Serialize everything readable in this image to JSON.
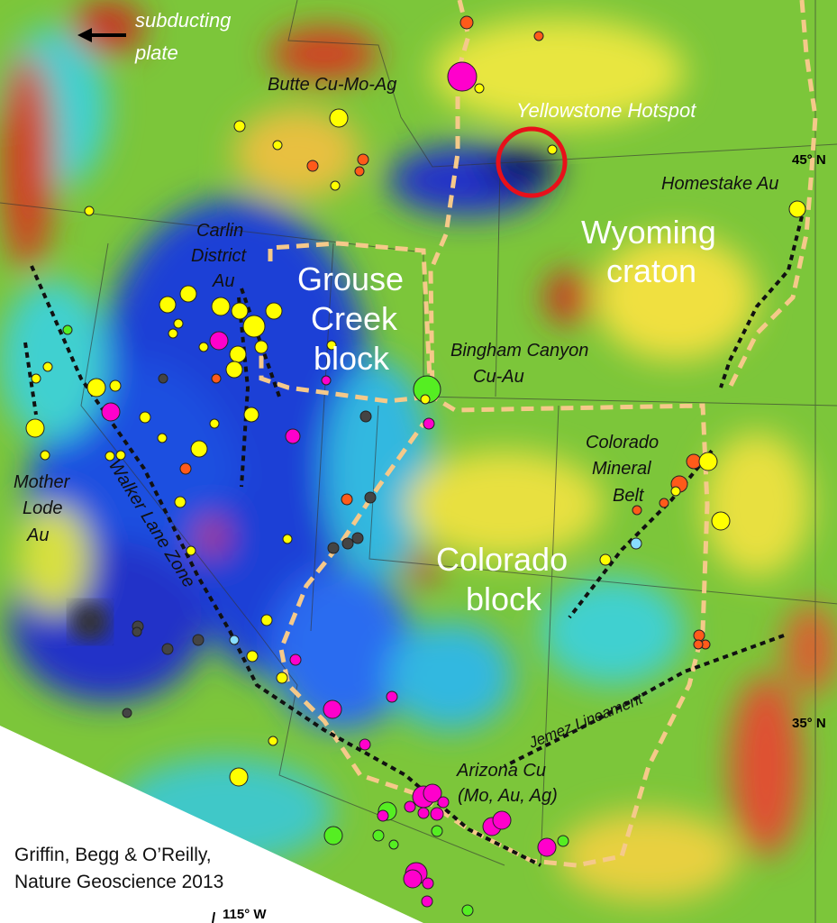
{
  "map": {
    "labels": {
      "subducting_plate": [
        "subducting",
        "plate"
      ],
      "butte": "Butte Cu-Mo-Ag",
      "yellowstone": "Yellowstone Hotspot",
      "homestake": "Homestake Au",
      "wyoming": [
        "Wyoming",
        "craton"
      ],
      "carlin": [
        "Carlin",
        "District",
        "Au"
      ],
      "grouse": [
        "Grouse",
        "Creek",
        "block"
      ],
      "bingham": [
        "Bingham Canyon",
        "Cu-Au"
      ],
      "colorado_mineral_belt": [
        "Colorado",
        "Mineral",
        "Belt"
      ],
      "mother_lode": [
        "Mother",
        "Lode",
        "Au"
      ],
      "walker_lane": "Walker Lane Zone",
      "colorado_block": [
        "Colorado",
        "block"
      ],
      "jemez": "Jemez Lineament",
      "arizona": [
        "Arizona Cu",
        "(Mo, Au, Ag)"
      ],
      "lat45": "45° N",
      "lat35": "35° N",
      "lon115": "115° W"
    },
    "credit": [
      "Griffin, Begg & O’Reilly,",
      "Nature Geoscience 2013"
    ],
    "colors": {
      "block_boundary": "#f5c98a",
      "lineament": "#111111",
      "hotspot_ring": "#e8101a",
      "au": "#ffff00",
      "cu": "#ff00cc",
      "mo": "#ff5a1a",
      "ag": "#55ee22",
      "other": "#444444"
    }
  }
}
